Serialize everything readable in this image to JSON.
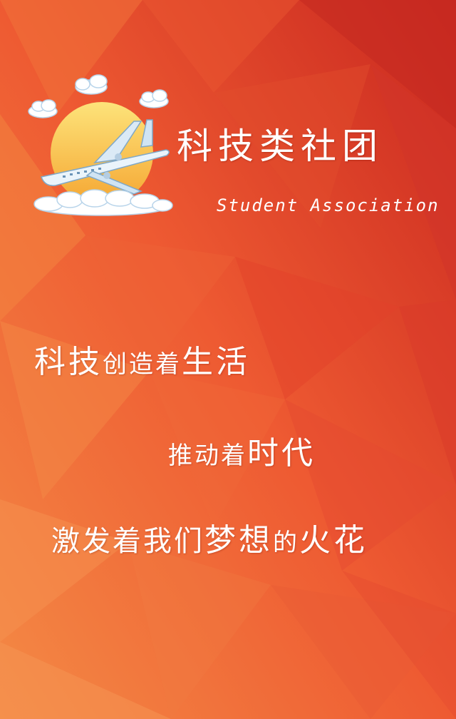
{
  "header": {
    "title": "科技类社团",
    "subtitle": "Student Association"
  },
  "slogan": {
    "line1": {
      "a": "科技",
      "b": "创造着",
      "c": "生活"
    },
    "line2": {
      "a": "推动着",
      "b": "时代"
    },
    "line3": {
      "a": "激发着我们",
      "b": "梦想",
      "c": "的",
      "d": "火花"
    }
  },
  "colors": {
    "background_light": "#f27a3a",
    "background_dark": "#c8281e",
    "text": "#ffffff",
    "sun": "#f9c94b"
  },
  "icons": {
    "logo": "airplane-sun-clouds-icon"
  }
}
